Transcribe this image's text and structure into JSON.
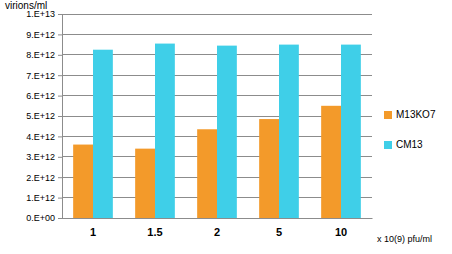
{
  "chart_data": {
    "type": "bar",
    "xlabel": "x 10(9) pfu/ml",
    "ylabel": "virions/ml",
    "categories": [
      "1",
      "1.5",
      "2",
      "5",
      "10"
    ],
    "series": [
      {
        "name": "M13KO7",
        "color": "#f39a2a",
        "values": [
          3600000000000.0,
          3400000000000.0,
          4350000000000.0,
          4850000000000.0,
          5500000000000.0
        ]
      },
      {
        "name": "CM13",
        "color": "#3fcfe8",
        "values": [
          8250000000000.0,
          8550000000000.0,
          8450000000000.0,
          8500000000000.0,
          8500000000000.0
        ]
      }
    ],
    "ylim": [
      0,
      10000000000000.0
    ],
    "yticks": [
      {
        "value": 0,
        "label": "0.E+00"
      },
      {
        "value": 1000000000000.0,
        "label": "1.E+12"
      },
      {
        "value": 2000000000000.0,
        "label": "2.E+12"
      },
      {
        "value": 3000000000000.0,
        "label": "3.E+12"
      },
      {
        "value": 4000000000000.0,
        "label": "4.E+12"
      },
      {
        "value": 5000000000000.0,
        "label": "5.E+12"
      },
      {
        "value": 6000000000000.0,
        "label": "6.E+12"
      },
      {
        "value": 7000000000000.0,
        "label": "7.E+12"
      },
      {
        "value": 8000000000000.0,
        "label": "8.E+12"
      },
      {
        "value": 9000000000000.0,
        "label": "9.E+12"
      },
      {
        "value": 10000000000000.0,
        "label": "1.E+13"
      }
    ],
    "grid": true,
    "legend": "right"
  }
}
